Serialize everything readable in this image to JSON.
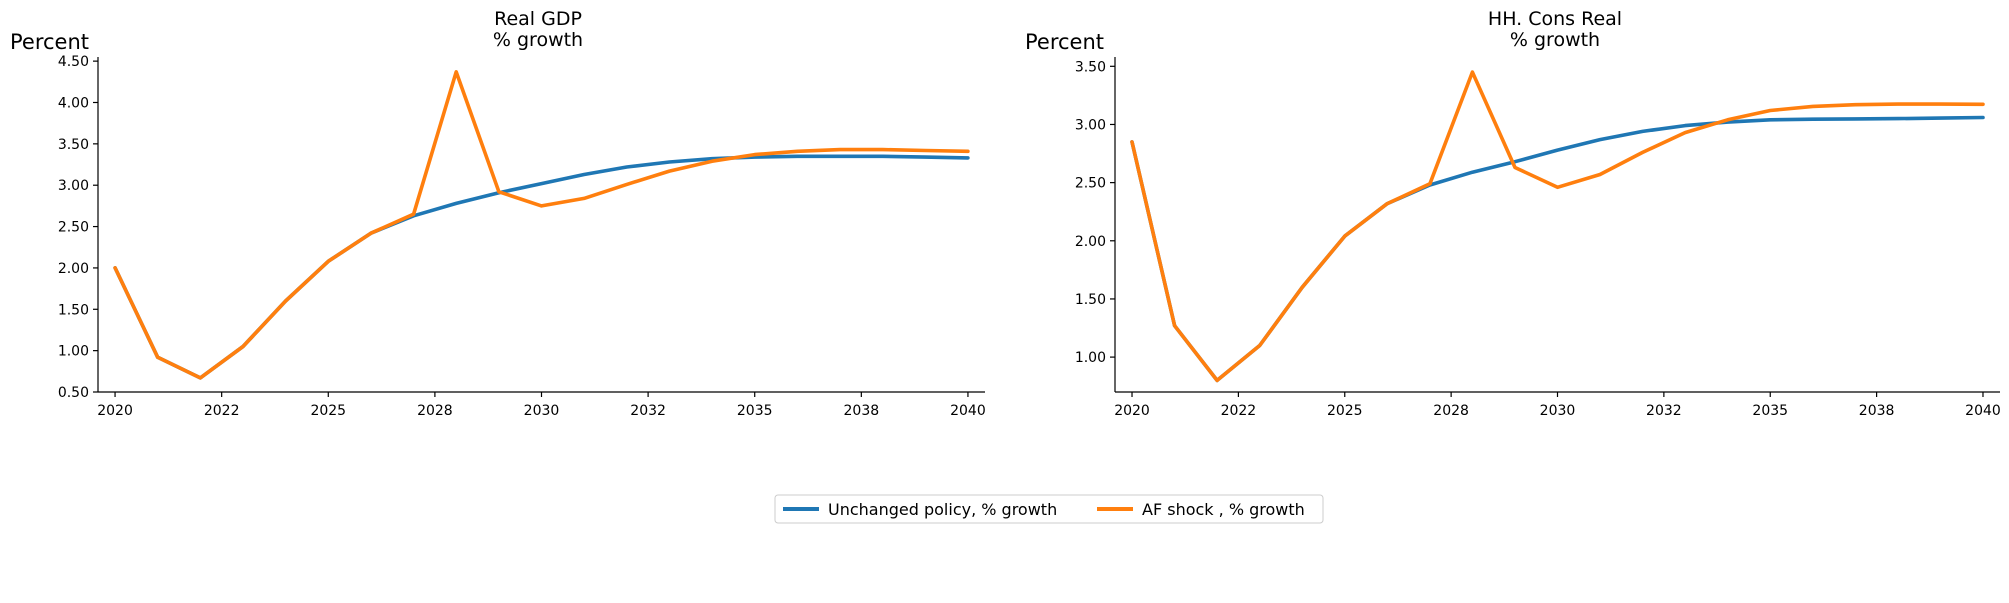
{
  "chart_data": [
    {
      "type": "line",
      "title": [
        "Real GDP",
        "% growth"
      ],
      "ylabel": "Percent",
      "xlabel": "",
      "ylim": [
        0.5,
        4.55
      ],
      "yticks": [
        "0.50",
        "1.00",
        "1.50",
        "2.00",
        "2.50",
        "3.00",
        "3.50",
        "4.00",
        "4.50"
      ],
      "xlim": [
        2019.6,
        2040.4
      ],
      "xticks": [
        "2020",
        "2022",
        "2025",
        "2028",
        "2030",
        "2032",
        "2035",
        "2038",
        "2040"
      ],
      "x": [
        2020,
        2021,
        2022,
        2023,
        2024,
        2025,
        2026,
        2027,
        2028,
        2029,
        2030,
        2031,
        2032,
        2033,
        2034,
        2035,
        2036,
        2037,
        2038,
        2039,
        2040
      ],
      "series": [
        {
          "name": "Unchanged policy, % growth",
          "color": "#1f77b4",
          "values": [
            2.0,
            0.92,
            0.67,
            1.05,
            1.6,
            2.08,
            2.42,
            2.63,
            2.78,
            2.91,
            3.02,
            3.13,
            3.22,
            3.28,
            3.32,
            3.34,
            3.35,
            3.35,
            3.35,
            3.34,
            3.33
          ]
        },
        {
          "name": "AF shock , % growth",
          "color": "#ff7f0e",
          "values": [
            2.0,
            0.92,
            0.67,
            1.05,
            1.6,
            2.08,
            2.42,
            2.65,
            4.37,
            2.92,
            2.75,
            2.84,
            3.01,
            3.17,
            3.29,
            3.37,
            3.41,
            3.43,
            3.43,
            3.42,
            3.41
          ]
        }
      ]
    },
    {
      "type": "line",
      "title": [
        "HH. Cons Real",
        "% growth"
      ],
      "ylabel": "Percent",
      "xlabel": "",
      "ylim": [
        0.7,
        3.58
      ],
      "yticks": [
        "1.00",
        "1.50",
        "2.00",
        "2.50",
        "3.00",
        "3.50"
      ],
      "xlim": [
        2019.6,
        2040.4
      ],
      "xticks": [
        "2020",
        "2022",
        "2025",
        "2028",
        "2030",
        "2032",
        "2035",
        "2038",
        "2040"
      ],
      "x": [
        2020,
        2021,
        2022,
        2023,
        2024,
        2025,
        2026,
        2027,
        2028,
        2029,
        2030,
        2031,
        2032,
        2033,
        2034,
        2035,
        2036,
        2037,
        2038,
        2039,
        2040
      ],
      "series": [
        {
          "name": "Unchanged policy, % growth",
          "color": "#1f77b4",
          "values": [
            2.85,
            1.27,
            0.8,
            1.1,
            1.6,
            2.04,
            2.32,
            2.48,
            2.59,
            2.68,
            2.78,
            2.87,
            2.94,
            2.99,
            3.02,
            3.04,
            3.045,
            3.048,
            3.05,
            3.055,
            3.06
          ]
        },
        {
          "name": "AF shock , % growth",
          "color": "#ff7f0e",
          "values": [
            2.85,
            1.27,
            0.8,
            1.1,
            1.6,
            2.04,
            2.32,
            2.49,
            3.45,
            2.63,
            2.46,
            2.57,
            2.76,
            2.93,
            3.04,
            3.12,
            3.155,
            3.17,
            3.175,
            3.175,
            3.173
          ]
        }
      ]
    }
  ],
  "legend": {
    "placement": "bottom-center",
    "items": [
      {
        "label": "Unchanged policy, % growth",
        "color": "#1f77b4"
      },
      {
        "label": "AF shock , % growth",
        "color": "#ff7f0e"
      }
    ]
  }
}
